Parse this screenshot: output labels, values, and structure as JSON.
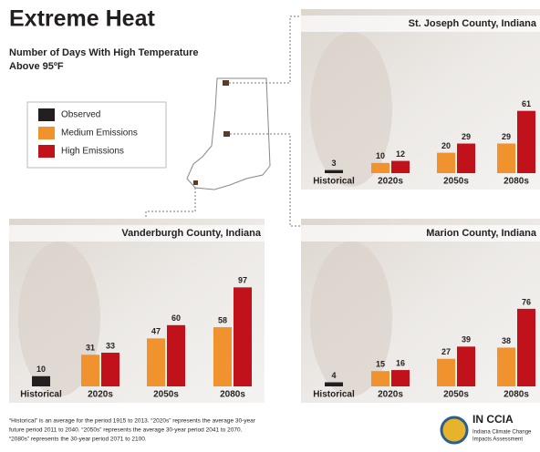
{
  "header": {
    "title": "Extreme Heat",
    "subtitle": [
      "Number of Days With High Temperature",
      "Above 95ºF"
    ]
  },
  "chart_data": [
    {
      "type": "bar",
      "title": "St. Joseph County, Indiana",
      "categories": [
        "Historical",
        "2020s",
        "2050s",
        "2080s"
      ],
      "series": [
        {
          "name": "Observed",
          "color": "#231f20",
          "values": [
            3,
            null,
            null,
            null
          ]
        },
        {
          "name": "Medium Emissions",
          "color": "#f0922e",
          "values": [
            null,
            10,
            20,
            29
          ]
        },
        {
          "name": "High Emissions",
          "color": "#c1121c",
          "values": [
            null,
            12,
            29,
            61
          ]
        }
      ]
    },
    {
      "type": "bar",
      "title": "Vanderburgh County, Indiana",
      "categories": [
        "Historical",
        "2020s",
        "2050s",
        "2080s"
      ],
      "series": [
        {
          "name": "Observed",
          "color": "#231f20",
          "values": [
            10,
            null,
            null,
            null
          ]
        },
        {
          "name": "Medium Emissions",
          "color": "#f0922e",
          "values": [
            null,
            31,
            47,
            58
          ]
        },
        {
          "name": "High Emissions",
          "color": "#c1121c",
          "values": [
            null,
            33,
            60,
            97
          ]
        }
      ]
    },
    {
      "type": "bar",
      "title": "Marion County, Indiana",
      "categories": [
        "Historical",
        "2020s",
        "2050s",
        "2080s"
      ],
      "series": [
        {
          "name": "Observed",
          "color": "#231f20",
          "values": [
            4,
            null,
            null,
            null
          ]
        },
        {
          "name": "Medium Emissions",
          "color": "#f0922e",
          "values": [
            null,
            15,
            27,
            38
          ]
        },
        {
          "name": "High Emissions",
          "color": "#c1121c",
          "values": [
            null,
            16,
            39,
            76
          ]
        }
      ]
    }
  ],
  "footer": {
    "note": [
      "“Historical” is an average for the period 1915 to 2013. “2020s” represents the average 30-year",
      "future period 2011 to 2040. “2050s” represents the average 30-year period 2041 to 2070.",
      "“2080s” represents the 30-year period 2071 to 2100."
    ],
    "logo": {
      "name": "IN CCIA",
      "tagline": [
        "Indiana Climate Change",
        "Impacts Assessment"
      ]
    }
  }
}
